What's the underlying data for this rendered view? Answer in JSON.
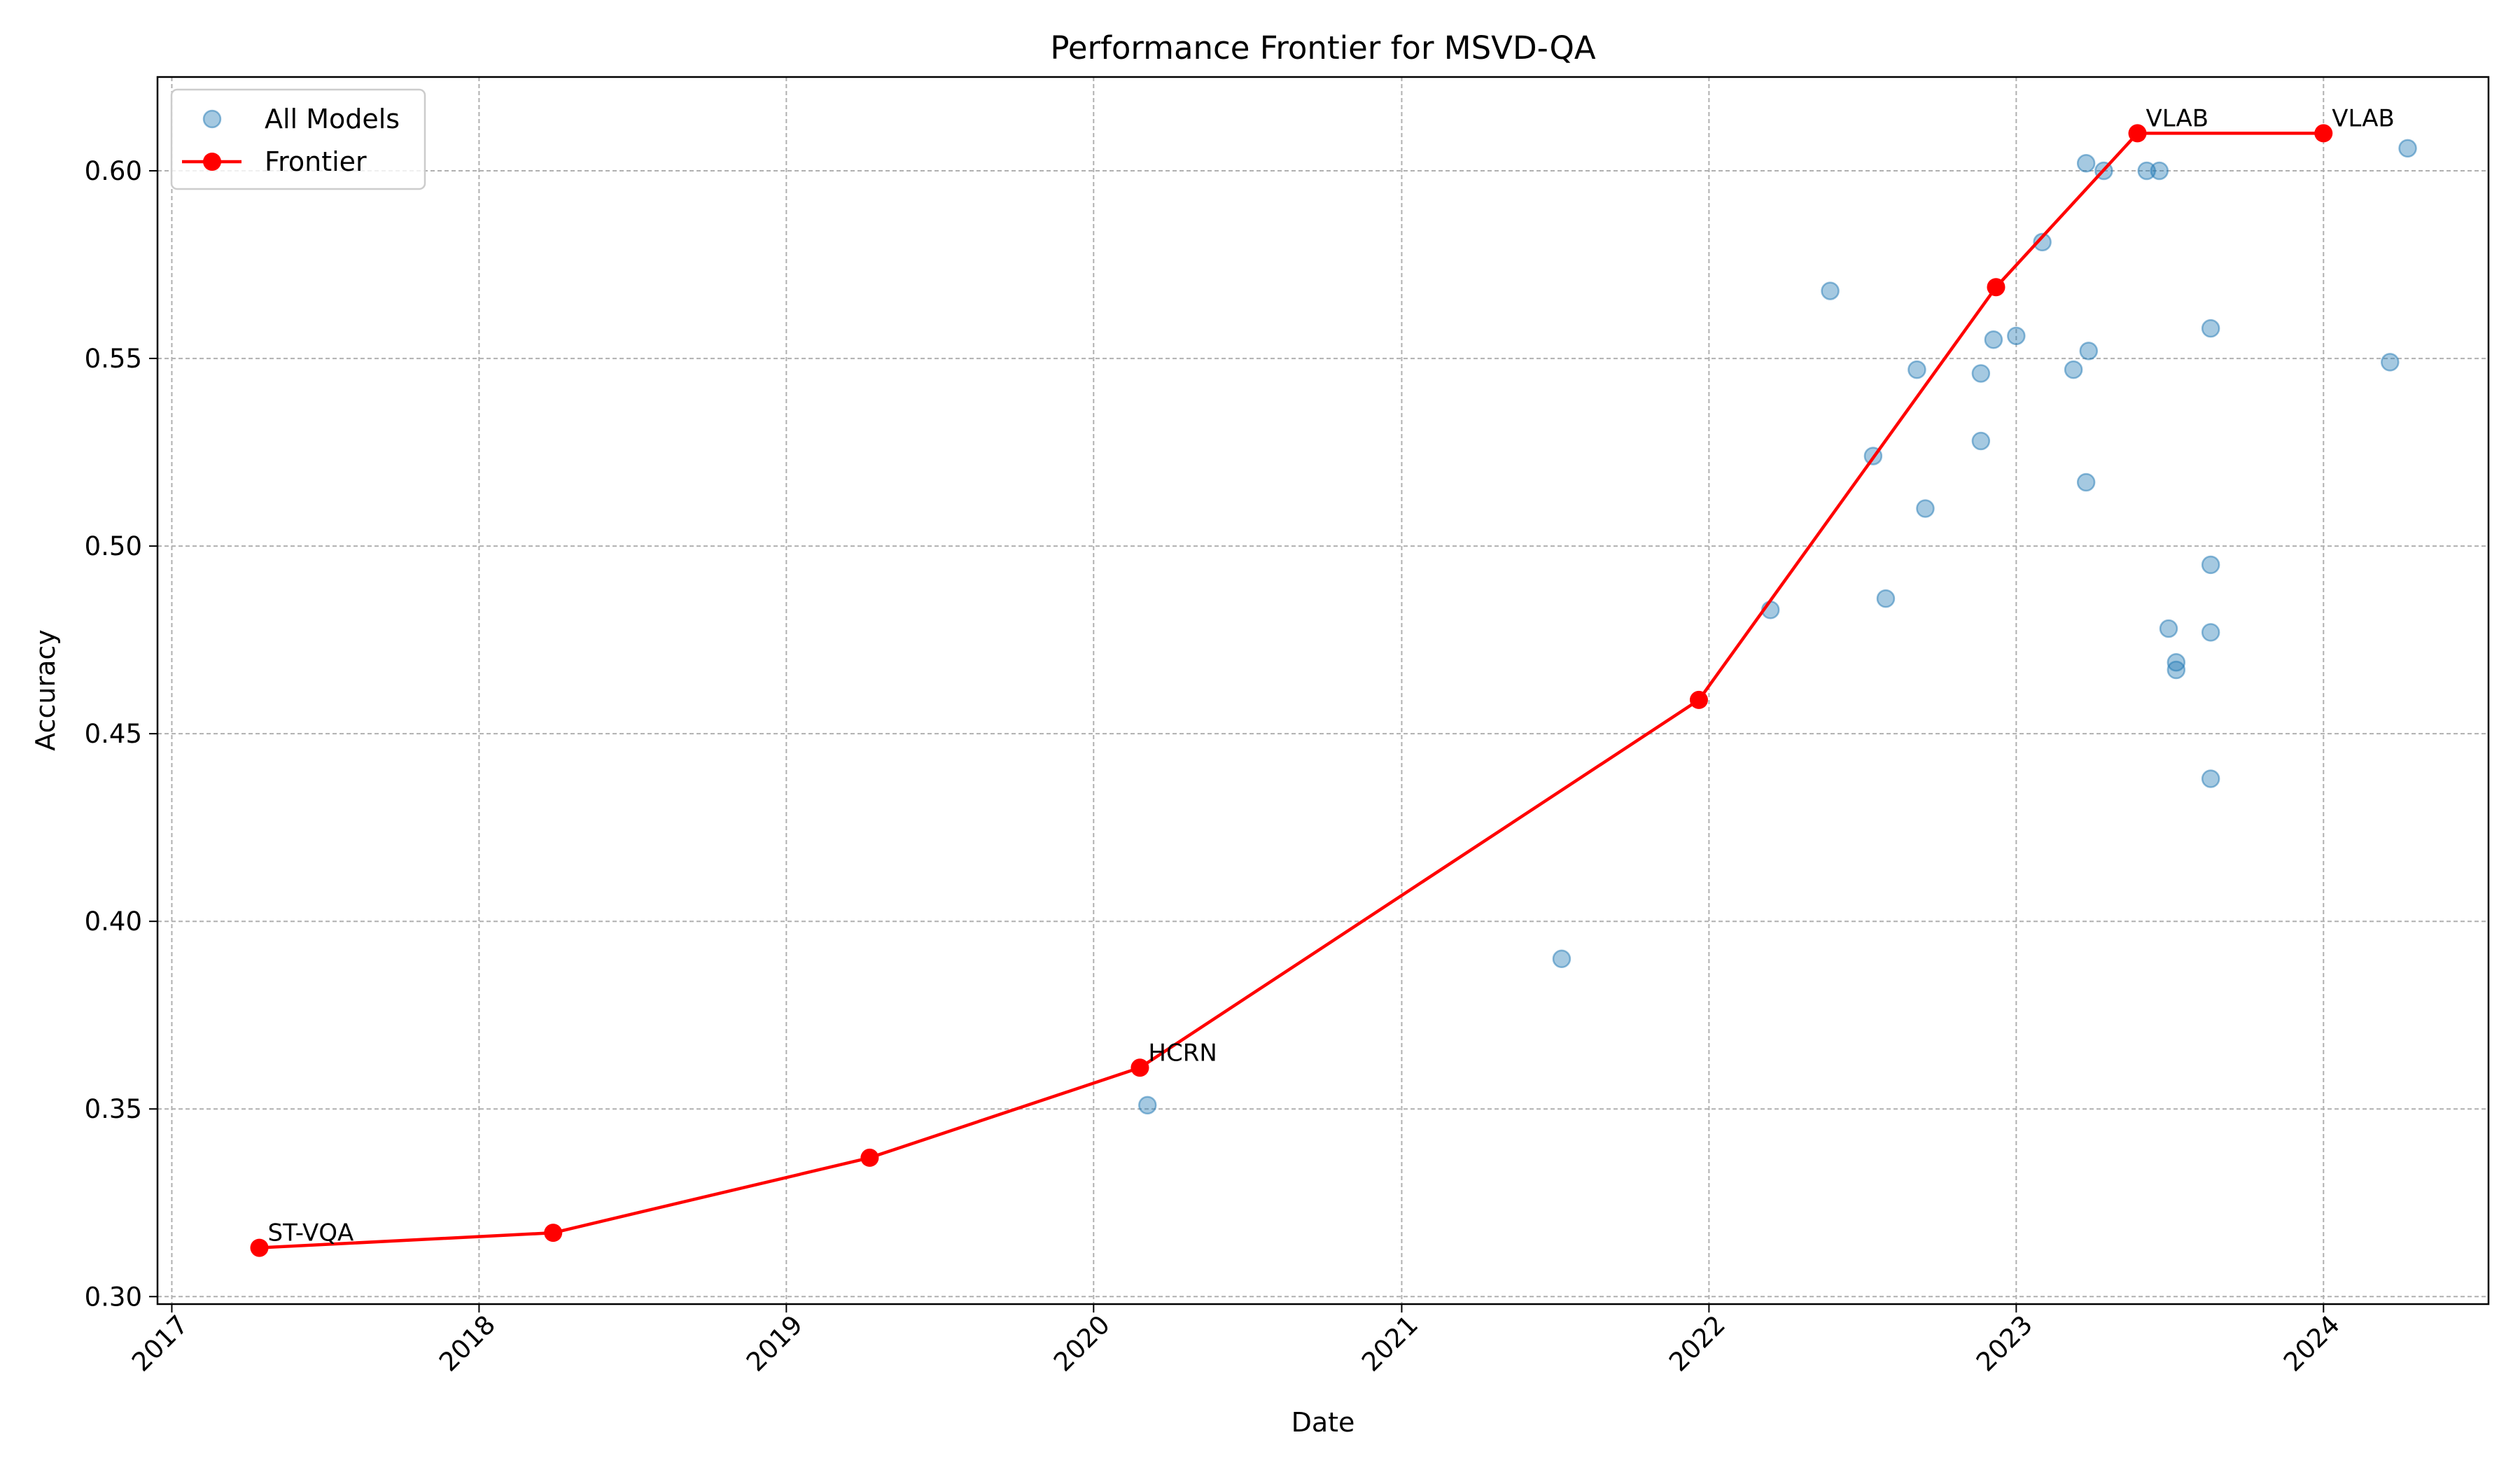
{
  "chart_data": {
    "type": "line",
    "title": "Performance Frontier for MSVD-QA",
    "xlabel": "Date",
    "ylabel": "Accuracy",
    "xlim": [
      "2016-12-15",
      "2024-07-15"
    ],
    "ylim": [
      0.298,
      0.625
    ],
    "x_ticks": [
      "2017",
      "2018",
      "2019",
      "2020",
      "2021",
      "2022",
      "2023",
      "2024"
    ],
    "y_ticks": [
      "0.30",
      "0.35",
      "0.40",
      "0.45",
      "0.50",
      "0.55",
      "0.60"
    ],
    "grid": true,
    "legend": {
      "placement": "top-left",
      "entries": [
        "All Models",
        "Frontier"
      ]
    },
    "colors": {
      "all_models": "#1f77b4",
      "frontier": "#ff0000",
      "grid": "#b0b0b0"
    },
    "series": [
      {
        "name": "All Models",
        "kind": "scatter",
        "points": [
          {
            "x": "2020-03-05",
            "y": 0.351
          },
          {
            "x": "2021-07-10",
            "y": 0.39
          },
          {
            "x": "2022-03-15",
            "y": 0.483
          },
          {
            "x": "2022-05-25",
            "y": 0.568
          },
          {
            "x": "2022-07-15",
            "y": 0.524
          },
          {
            "x": "2022-07-30",
            "y": 0.486
          },
          {
            "x": "2022-09-05",
            "y": 0.547
          },
          {
            "x": "2022-09-15",
            "y": 0.51
          },
          {
            "x": "2022-11-20",
            "y": 0.546
          },
          {
            "x": "2022-11-20",
            "y": 0.528
          },
          {
            "x": "2022-12-05",
            "y": 0.555
          },
          {
            "x": "2023-01-01",
            "y": 0.556
          },
          {
            "x": "2023-02-01",
            "y": 0.581
          },
          {
            "x": "2023-03-10",
            "y": 0.547
          },
          {
            "x": "2023-03-25",
            "y": 0.517
          },
          {
            "x": "2023-03-25",
            "y": 0.602
          },
          {
            "x": "2023-03-28",
            "y": 0.552
          },
          {
            "x": "2023-04-15",
            "y": 0.6
          },
          {
            "x": "2023-06-05",
            "y": 0.6
          },
          {
            "x": "2023-06-20",
            "y": 0.6
          },
          {
            "x": "2023-07-01",
            "y": 0.478
          },
          {
            "x": "2023-07-10",
            "y": 0.469
          },
          {
            "x": "2023-07-10",
            "y": 0.467
          },
          {
            "x": "2023-08-20",
            "y": 0.558
          },
          {
            "x": "2023-08-20",
            "y": 0.495
          },
          {
            "x": "2023-08-20",
            "y": 0.477
          },
          {
            "x": "2023-08-20",
            "y": 0.438
          },
          {
            "x": "2024-03-20",
            "y": 0.549
          },
          {
            "x": "2024-04-10",
            "y": 0.606
          }
        ]
      },
      {
        "name": "Frontier",
        "kind": "line",
        "points": [
          {
            "x": "2017-04-15",
            "y": 0.313,
            "label": "ST-VQA"
          },
          {
            "x": "2018-03-30",
            "y": 0.317
          },
          {
            "x": "2019-04-10",
            "y": 0.337
          },
          {
            "x": "2020-02-25",
            "y": 0.361,
            "label": "HCRN"
          },
          {
            "x": "2021-12-20",
            "y": 0.459
          },
          {
            "x": "2022-12-08",
            "y": 0.569
          },
          {
            "x": "2023-05-25",
            "y": 0.61,
            "label": "VLAB"
          },
          {
            "x": "2024-01-01",
            "y": 0.61,
            "label": "VLAB"
          }
        ]
      }
    ]
  }
}
